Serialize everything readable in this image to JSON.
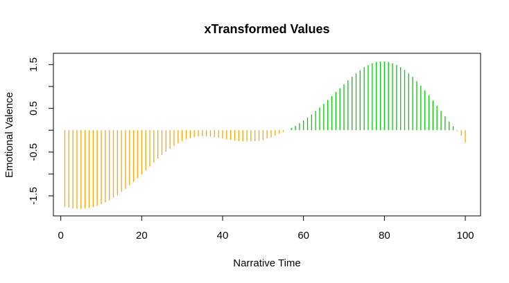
{
  "chart_data": {
    "type": "bar",
    "style": "vertical-lines",
    "title": "xTransformed Values",
    "xlabel": "Narrative Time",
    "ylabel": "Emotional Valence",
    "xlim": [
      1,
      100
    ],
    "ylim": [
      -1.8,
      1.6
    ],
    "xticks": [
      0,
      20,
      40,
      60,
      80,
      100
    ],
    "yticks": [
      -1.5,
      -1.0,
      -0.5,
      0.0,
      0.5,
      1.0,
      1.5
    ],
    "ytick_labels": [
      "-1.5",
      "",
      "-0.5",
      "",
      "0.5",
      "",
      "1.5"
    ],
    "colors": {
      "negative": "#FFA500",
      "positive": "#00CD00",
      "axis": "#000000"
    },
    "x": [
      1,
      2,
      3,
      4,
      5,
      6,
      7,
      8,
      9,
      10,
      11,
      12,
      13,
      14,
      15,
      16,
      17,
      18,
      19,
      20,
      21,
      22,
      23,
      24,
      25,
      26,
      27,
      28,
      29,
      30,
      31,
      32,
      33,
      34,
      35,
      36,
      37,
      38,
      39,
      40,
      41,
      42,
      43,
      44,
      45,
      46,
      47,
      48,
      49,
      50,
      51,
      52,
      53,
      54,
      55,
      56,
      57,
      58,
      59,
      60,
      61,
      62,
      63,
      64,
      65,
      66,
      67,
      68,
      69,
      70,
      71,
      72,
      73,
      74,
      75,
      76,
      77,
      78,
      79,
      80,
      81,
      82,
      83,
      84,
      85,
      86,
      87,
      88,
      89,
      90,
      91,
      92,
      93,
      94,
      95,
      96,
      97,
      98,
      99,
      100
    ],
    "values": [
      -1.75,
      -1.77,
      -1.79,
      -1.8,
      -1.8,
      -1.79,
      -1.78,
      -1.76,
      -1.73,
      -1.69,
      -1.65,
      -1.6,
      -1.54,
      -1.48,
      -1.41,
      -1.34,
      -1.26,
      -1.18,
      -1.1,
      -1.01,
      -0.92,
      -0.83,
      -0.74,
      -0.65,
      -0.57,
      -0.49,
      -0.42,
      -0.36,
      -0.3,
      -0.25,
      -0.21,
      -0.18,
      -0.16,
      -0.14,
      -0.14,
      -0.14,
      -0.15,
      -0.16,
      -0.17,
      -0.19,
      -0.21,
      -0.22,
      -0.24,
      -0.25,
      -0.26,
      -0.26,
      -0.26,
      -0.25,
      -0.24,
      -0.22,
      -0.19,
      -0.16,
      -0.12,
      -0.08,
      -0.04,
      0.0,
      0.05,
      0.1,
      0.16,
      0.22,
      0.29,
      0.36,
      0.44,
      0.52,
      0.6,
      0.69,
      0.78,
      0.87,
      0.96,
      1.05,
      1.14,
      1.22,
      1.3,
      1.37,
      1.44,
      1.49,
      1.53,
      1.56,
      1.57,
      1.57,
      1.56,
      1.53,
      1.49,
      1.44,
      1.38,
      1.3,
      1.22,
      1.12,
      1.02,
      0.91,
      0.8,
      0.68,
      0.56,
      0.44,
      0.32,
      0.2,
      0.09,
      -0.02,
      -0.13,
      -0.28
    ]
  }
}
